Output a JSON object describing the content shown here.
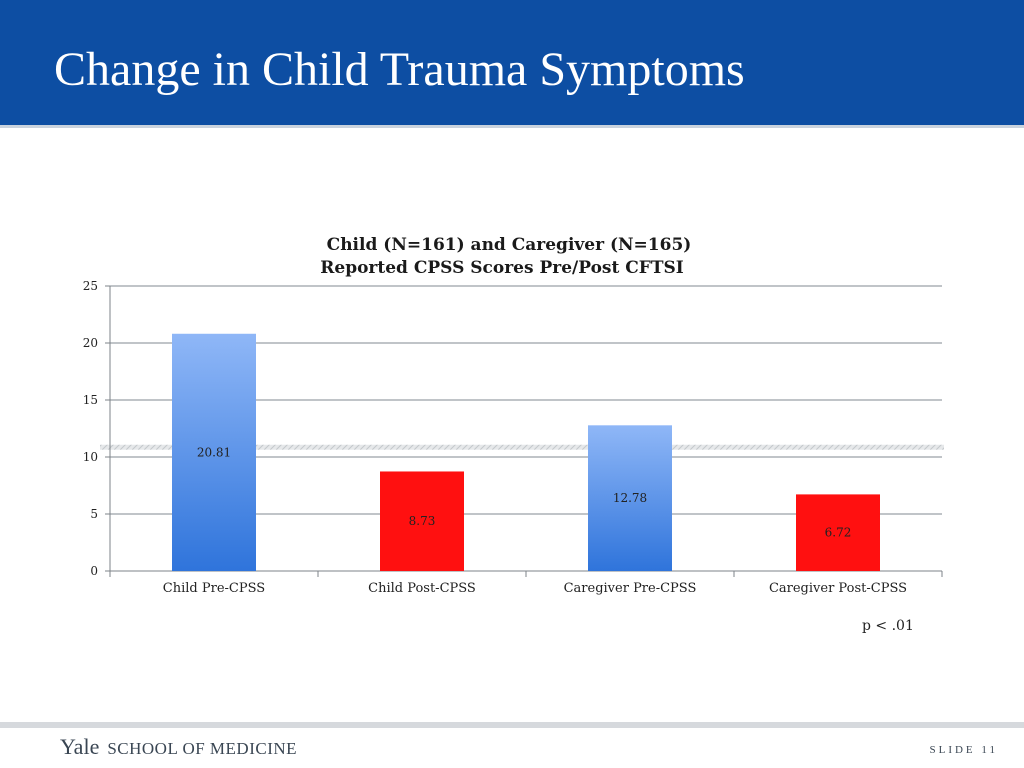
{
  "slide": {
    "title": "Change in Child Trauma Symptoms",
    "p_value": "p < .01",
    "footer_logo_main": "Yale",
    "footer_logo_sub": "SCHOOL OF MEDICINE",
    "slide_number": "SLIDE 11"
  },
  "colors": {
    "header_bg": "#0d4ea3",
    "pre_bar_top": "#8fb7f7",
    "pre_bar_bottom": "#2f74db",
    "post_bar": "#ff1010"
  },
  "chart_data": {
    "type": "bar",
    "title_lines": [
      "Child (N=161) and Caregiver (N=165)",
      "Reported CPSS Scores Pre/Post CFTSI"
    ],
    "categories": [
      "Child Pre-CPSS",
      "Child Post-CPSS",
      "Caregiver Pre-CPSS",
      "Caregiver Post-CPSS"
    ],
    "values": [
      20.81,
      8.73,
      12.78,
      6.72
    ],
    "value_labels": [
      "20.81",
      "8.73",
      "12.78",
      "6.72"
    ],
    "bar_styles": [
      "pre",
      "post",
      "pre",
      "post"
    ],
    "ylim": [
      0,
      25
    ],
    "yticks": [
      0,
      5,
      10,
      15,
      20,
      25
    ],
    "ytick_labels": [
      "0",
      "5",
      "10",
      "15",
      "20",
      "25"
    ],
    "xlabel": "",
    "ylabel": "",
    "grid": true,
    "legend": "none"
  }
}
